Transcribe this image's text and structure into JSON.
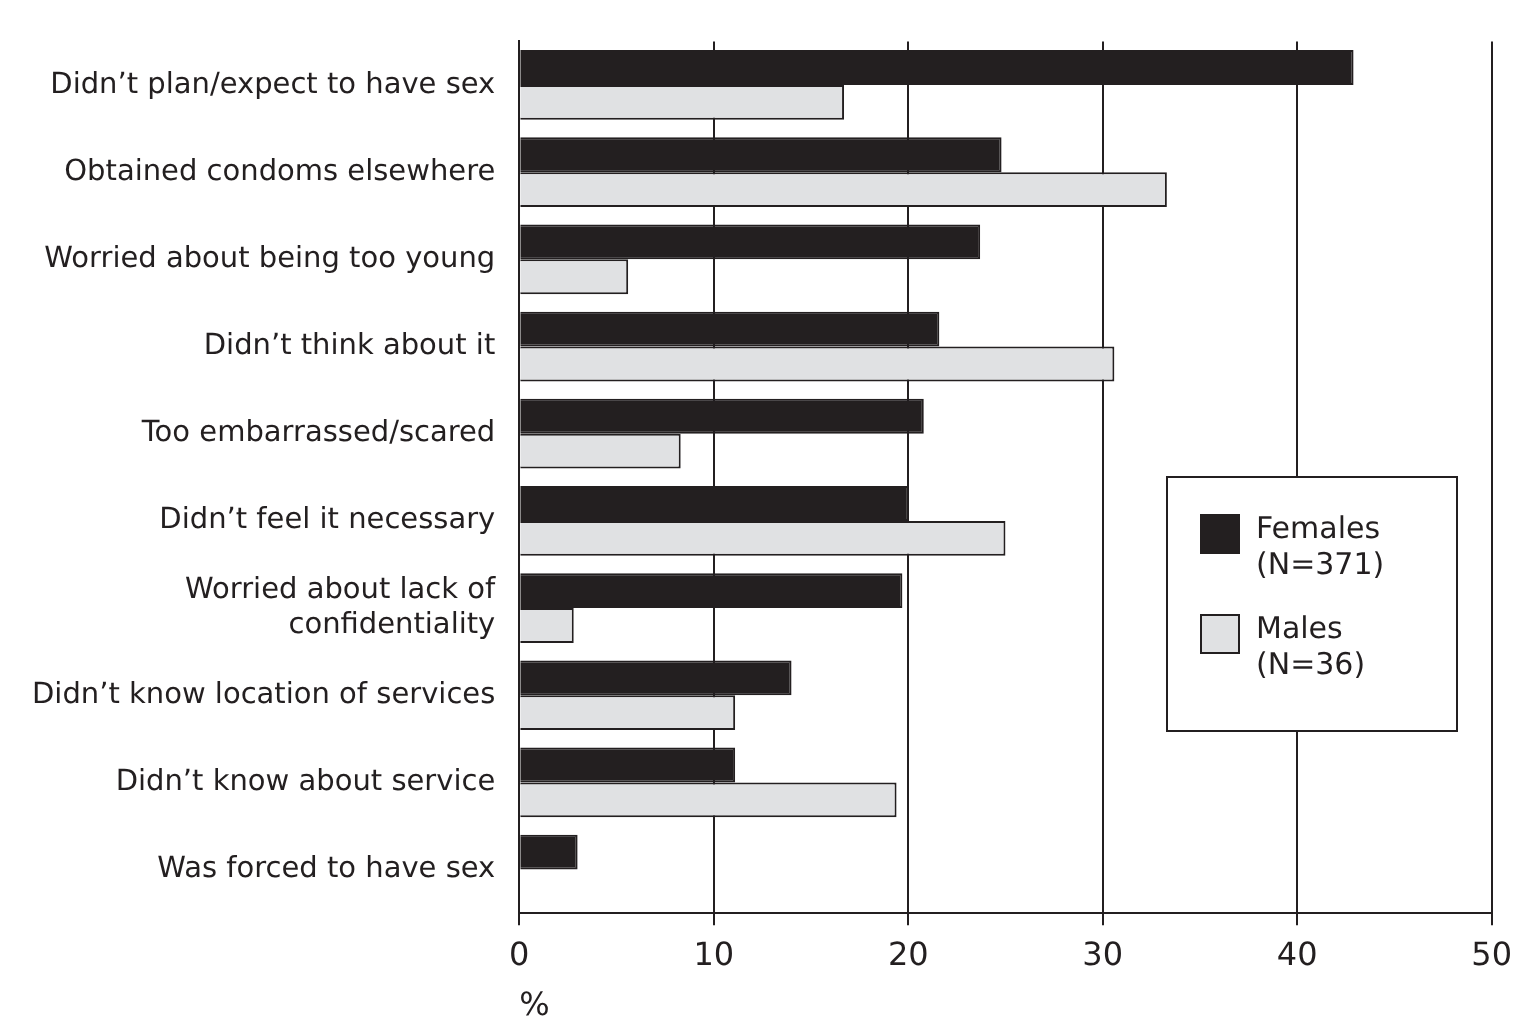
{
  "chart_data": {
    "type": "bar",
    "orientation": "horizontal",
    "xlabel": "%",
    "categories": [
      "Didn’t plan/expect to have sex",
      "Obtained condoms elsewhere",
      "Worried about being too young",
      "Didn’t think about it",
      "Too embarrassed/scared",
      "Didn’t feel it necessary",
      "Worried about lack of confidentiality",
      "Didn’t know location of services",
      "Didn’t know about service",
      "Was forced to have sex"
    ],
    "series": [
      {
        "name": "Females (N=371)",
        "color": "#231f20",
        "values": [
          42.9,
          24.8,
          23.7,
          21.6,
          20.8,
          20.0,
          19.7,
          14.0,
          11.1,
          3.0
        ]
      },
      {
        "name": "Males (N=36)",
        "color": "#e0e1e3",
        "values": [
          16.7,
          33.3,
          5.6,
          30.6,
          8.3,
          25.0,
          2.8,
          11.1,
          19.4,
          0
        ]
      }
    ],
    "xlim": [
      0,
      50
    ],
    "xticks": [
      0,
      10,
      20,
      30,
      40,
      50
    ],
    "grid": "x",
    "legend": "right"
  }
}
